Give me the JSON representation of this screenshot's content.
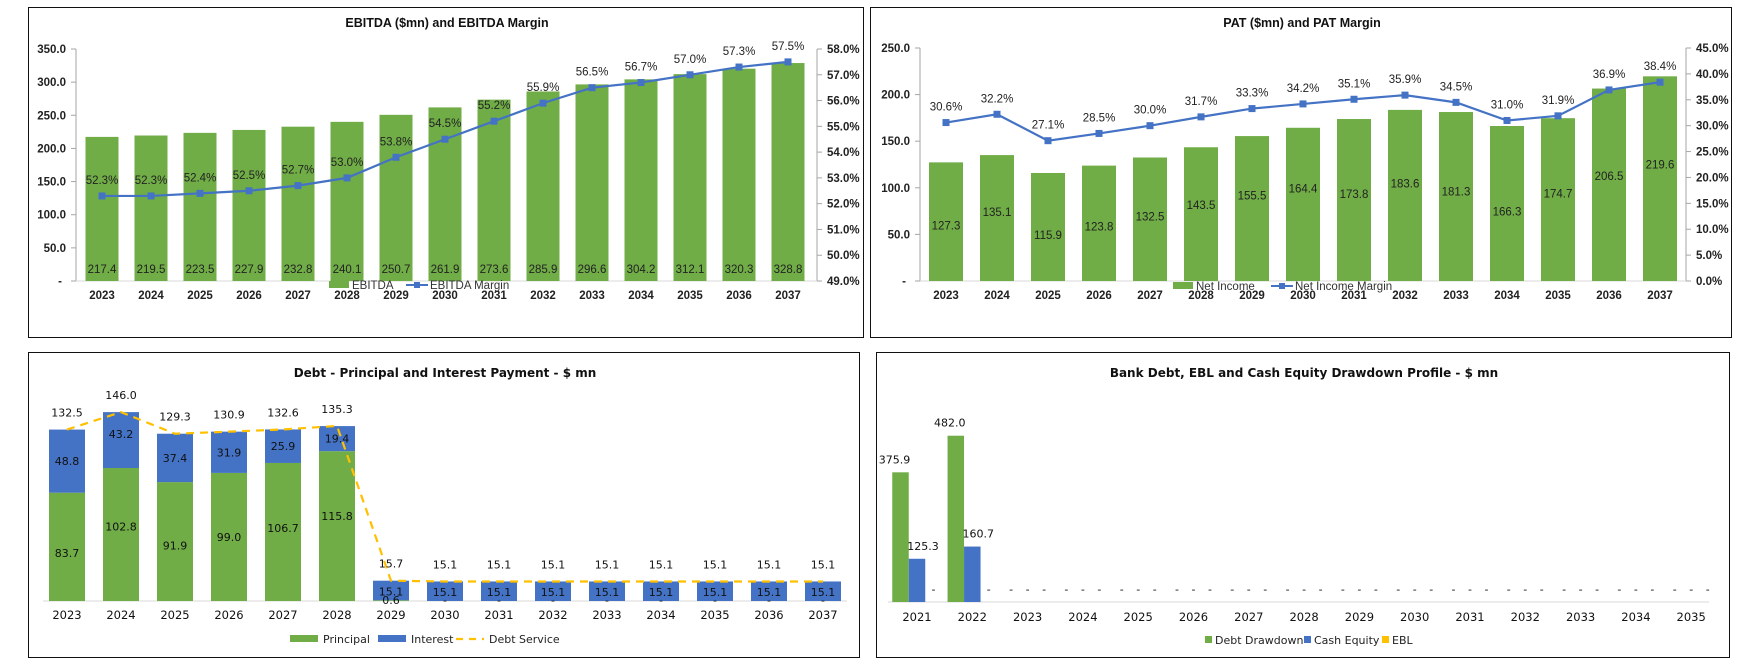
{
  "colors": {
    "green": "#70AD47",
    "blue": "#4472C4",
    "gold": "#FFC000",
    "axis": "#A6A6A6"
  },
  "chart_data": [
    {
      "id": "ebitda",
      "type": "bar",
      "title": "EBITDA ($mn) and EBITDA Margin",
      "categories": [
        "2023",
        "2024",
        "2025",
        "2026",
        "2027",
        "2028",
        "2029",
        "2030",
        "2031",
        "2032",
        "2033",
        "2034",
        "2035",
        "2036",
        "2037"
      ],
      "series": [
        {
          "name": "EBITDA",
          "kind": "bar",
          "axis": "left",
          "values": [
            217.4,
            219.5,
            223.5,
            227.9,
            232.8,
            240.1,
            250.7,
            261.9,
            273.6,
            285.9,
            296.6,
            304.2,
            312.1,
            320.3,
            328.8
          ]
        },
        {
          "name": "EBITDA Margin",
          "kind": "line",
          "axis": "right",
          "values": [
            52.3,
            52.3,
            52.4,
            52.5,
            52.7,
            53.0,
            53.8,
            54.5,
            55.2,
            55.9,
            56.5,
            56.7,
            57.0,
            57.3,
            57.5
          ]
        }
      ],
      "ylim": [
        0,
        350
      ],
      "yticks": [
        "-",
        "50.0",
        "100.0",
        "150.0",
        "200.0",
        "250.0",
        "300.0",
        "350.0"
      ],
      "y2lim": [
        49,
        58
      ],
      "y2ticks": [
        "49.0%",
        "50.0%",
        "51.0%",
        "52.0%",
        "53.0%",
        "54.0%",
        "55.0%",
        "56.0%",
        "57.0%",
        "58.0%"
      ],
      "legend": "bottom",
      "grid": false
    },
    {
      "id": "pat",
      "type": "bar",
      "title": "PAT ($mn) and PAT Margin",
      "categories": [
        "2023",
        "2024",
        "2025",
        "2026",
        "2027",
        "2028",
        "2029",
        "2030",
        "2031",
        "2032",
        "2033",
        "2034",
        "2035",
        "2036",
        "2037"
      ],
      "series": [
        {
          "name": "Net Income",
          "kind": "bar",
          "axis": "left",
          "values": [
            127.3,
            135.1,
            115.9,
            123.8,
            132.5,
            143.5,
            155.5,
            164.4,
            173.8,
            183.6,
            181.3,
            166.3,
            174.7,
            206.5,
            219.6
          ]
        },
        {
          "name": "Net Income Margin",
          "kind": "line",
          "axis": "right",
          "values": [
            30.6,
            32.2,
            27.1,
            28.5,
            30.0,
            31.7,
            33.3,
            34.2,
            35.1,
            35.9,
            34.5,
            31.0,
            31.9,
            36.9,
            38.4
          ]
        }
      ],
      "ylim": [
        0,
        250
      ],
      "yticks": [
        "-",
        "50.0",
        "100.0",
        "150.0",
        "200.0",
        "250.0"
      ],
      "y2lim": [
        0,
        45
      ],
      "y2ticks": [
        "0.0%",
        "5.0%",
        "10.0%",
        "15.0%",
        "20.0%",
        "25.0%",
        "30.0%",
        "35.0%",
        "40.0%",
        "45.0%"
      ],
      "legend": "bottom",
      "grid": false
    },
    {
      "id": "debt",
      "type": "bar",
      "stacked": true,
      "title": "Debt - Principal and Interest Payment - $ mn",
      "categories": [
        "2023",
        "2024",
        "2025",
        "2026",
        "2027",
        "2028",
        "2029",
        "2030",
        "2031",
        "2032",
        "2033",
        "2034",
        "2035",
        "2036",
        "2037"
      ],
      "series": [
        {
          "name": "Principal",
          "kind": "bar",
          "values": [
            83.7,
            102.8,
            91.9,
            99.0,
            106.7,
            115.8,
            0.6,
            0,
            0,
            0,
            0,
            0,
            0,
            0,
            0
          ]
        },
        {
          "name": "Interest",
          "kind": "bar",
          "values": [
            48.8,
            43.2,
            37.4,
            31.9,
            25.9,
            19.4,
            15.1,
            15.1,
            15.1,
            15.1,
            15.1,
            15.1,
            15.1,
            15.1,
            15.1
          ]
        },
        {
          "name": "Debt Service",
          "kind": "line",
          "style": "dashed",
          "values": [
            132.5,
            146.0,
            129.3,
            130.9,
            132.6,
            135.3,
            15.7,
            15.1,
            15.1,
            15.1,
            15.1,
            15.1,
            15.1,
            15.1,
            15.1
          ]
        }
      ],
      "ylim": [
        0,
        160
      ],
      "legend": "bottom",
      "grid": false
    },
    {
      "id": "drawdown",
      "type": "bar",
      "title": "Bank Debt, EBL and Cash Equity Drawdown Profile - $ mn",
      "categories": [
        "2021",
        "2022",
        "2023",
        "2024",
        "2025",
        "2026",
        "2027",
        "2028",
        "2029",
        "2030",
        "2031",
        "2032",
        "2033",
        "2034",
        "2035"
      ],
      "series": [
        {
          "name": "Debt Drawdown",
          "kind": "bar",
          "values": [
            375.9,
            482.0,
            0,
            0,
            0,
            0,
            0,
            0,
            0,
            0,
            0,
            0,
            0,
            0,
            0
          ]
        },
        {
          "name": "Cash Equity",
          "kind": "bar",
          "values": [
            125.3,
            160.7,
            0,
            0,
            0,
            0,
            0,
            0,
            0,
            0,
            0,
            0,
            0,
            0,
            0
          ]
        },
        {
          "name": "EBL",
          "kind": "bar",
          "values": [
            0,
            0,
            0,
            0,
            0,
            0,
            0,
            0,
            0,
            0,
            0,
            0,
            0,
            0,
            0
          ]
        }
      ],
      "ylim": [
        0,
        600
      ],
      "zero_label": "-",
      "legend": "bottom",
      "grid": false
    }
  ]
}
